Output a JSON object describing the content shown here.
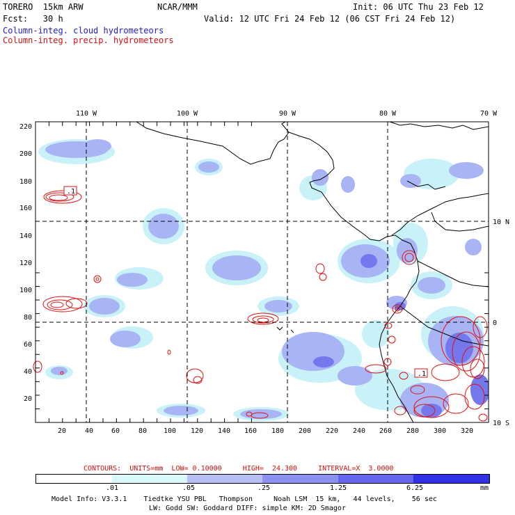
{
  "header": {
    "title_left": "TORERO  15km ARW",
    "title_center": "NCAR/MMM",
    "init": "Init: 06 UTC Thu 23 Feb 12",
    "fcst": "Fcst:   30 h",
    "valid": "Valid: 12 UTC Fri 24 Feb 12 (06 CST Fri 24 Feb 12)",
    "field1": "Column-integ. cloud hydrometeors",
    "field2": "Column-integ. precip. hydrometeors"
  },
  "colors": {
    "cloud_light": "#c8f2f8",
    "cloud_mid": "#a8b4f4",
    "cloud_dark": "#7478ec",
    "precip": "#e01010",
    "coast": "#000000"
  },
  "map": {
    "lon_labels": [
      "110 W",
      "100 W",
      "90 W",
      "80 W",
      "70 W"
    ],
    "lat_labels": [
      "10 N",
      "0",
      "10 S"
    ],
    "y_ticks": [
      "220",
      "200",
      "180",
      "160",
      "140",
      "120",
      "100",
      "80",
      "60",
      "40",
      "20"
    ],
    "x_ticks": [
      "20",
      "40",
      "60",
      "80",
      "100",
      "120",
      "140",
      "160",
      "180",
      "200",
      "220",
      "240",
      "260",
      "280",
      "300",
      "320"
    ],
    "contour_labels": [
      ".1",
      ".1"
    ]
  },
  "legend": {
    "contours_text": "CONTOURS:  UNITS=mm  LOW= 0.10000     HIGH=  24.300     INTERVAL=X  3.0000",
    "colorbar_colors": [
      "#ffffff",
      "#d8f8fc",
      "#b8c0f8",
      "#8c90f0",
      "#6466ec",
      "#3030e8"
    ],
    "colorbar_labels": [
      ".01",
      ".05",
      ".25",
      "1.25",
      "6.25",
      "mm"
    ]
  },
  "model_info": {
    "line1": "Model Info: V3.3.1    Tiedtke YSU PBL   Thompson     Noah LSM  15 km,   44 levels,    56 sec",
    "line2": "LW: Godd SW: Goddard DIFF: simple KM: 2D Smagor"
  }
}
